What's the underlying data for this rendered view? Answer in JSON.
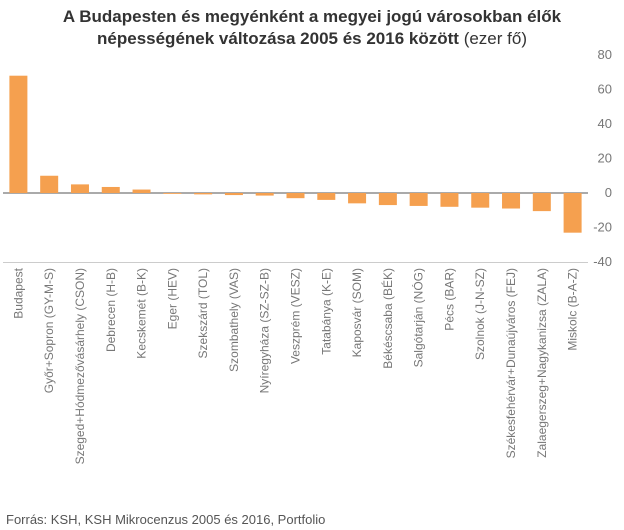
{
  "chart_data": {
    "type": "bar",
    "title_line1": "A Budapesten és megyénként a megyei jogú városokban élők",
    "title_line2": "népességének változása 2005 és 2016 között",
    "title_unit": "(ezer fő)",
    "categories": [
      "Budapest",
      "Győr+Sopron (GY-M-S)",
      "Szeged+Hódmezővásárhely (CSON)",
      "Debrecen (H-B)",
      "Kecskemét (B-K)",
      "Eger (HEV)",
      "Szekszárd (TOL)",
      "Szombathely (VAS)",
      "Nyíregyháza (SZ-SZ-B)",
      "Veszprém (VESZ)",
      "Tatabánya (K-E)",
      "Kaposvár (SOM)",
      "Békéscsaba (BÉK)",
      "Salgótarján (NÓG)",
      "Pécs (BAR)",
      "Szolnok (J-N-SZ)",
      "Székesfehérvár+Dunaújváros (FEJ)",
      "Zalaegerszeg+Nagykanizsa (ZALA)",
      "Miskolc (B-A-Z)"
    ],
    "values": [
      68,
      10,
      5,
      3.5,
      2,
      -0.5,
      -0.8,
      -1.2,
      -1.5,
      -3,
      -4,
      -6,
      -7,
      -7.5,
      -8,
      -8.5,
      -9,
      -10.5,
      -23
    ],
    "ylim": [
      -40,
      80
    ],
    "yticks": [
      -40,
      -20,
      0,
      20,
      40,
      60,
      80
    ],
    "bar_color": "#F5A04F",
    "axis_side": "right",
    "grid": false
  },
  "source": "Forrás: KSH, KSH Mikrocenzus 2005 és 2016, Portfolio"
}
